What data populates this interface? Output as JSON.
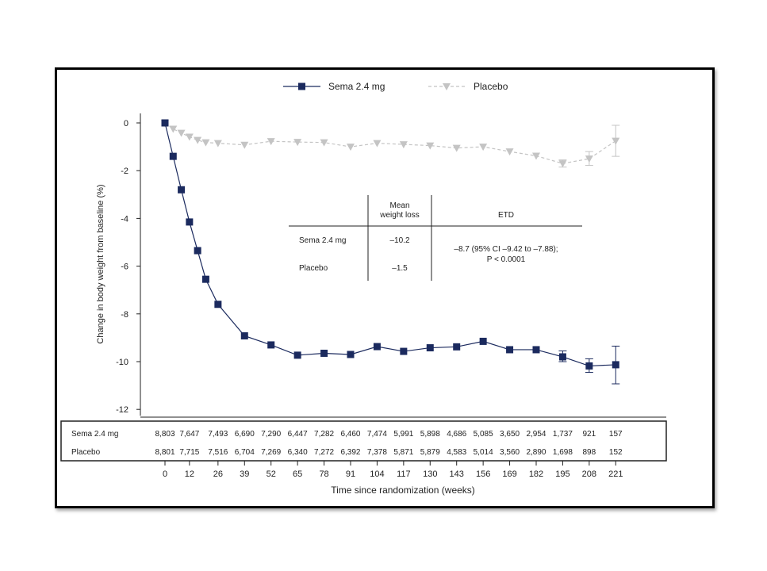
{
  "chart_data": {
    "type": "line",
    "xlabel": "Time since randomization (weeks)",
    "ylabel": "Change in body weight from baseline (%)",
    "ylim": [
      -12,
      0
    ],
    "xticks": [
      0,
      12,
      26,
      39,
      52,
      65,
      78,
      91,
      104,
      117,
      130,
      143,
      156,
      169,
      182,
      195,
      208,
      221
    ],
    "yticks": [
      0,
      -2,
      -4,
      -6,
      -8,
      -10,
      -12
    ],
    "ytick_labels": [
      "0",
      "-2",
      "-4",
      "-6",
      "-8",
      "-10",
      "-12"
    ],
    "legend_position": "top",
    "series": [
      {
        "name": "Sema 2.4 mg",
        "color": "#1b2a5e",
        "marker": "square",
        "line_style": "solid",
        "x": [
          0,
          4,
          8,
          12,
          16,
          20,
          26,
          39,
          52,
          65,
          78,
          91,
          104,
          117,
          130,
          143,
          156,
          169,
          182,
          195,
          208,
          221
        ],
        "y": [
          0,
          -1.4,
          -2.8,
          -4.15,
          -5.35,
          -6.55,
          -7.6,
          -8.92,
          -9.3,
          -9.73,
          -9.65,
          -9.7,
          -9.37,
          -9.57,
          -9.42,
          -9.38,
          -9.15,
          -9.5,
          -9.5,
          -9.8,
          -10.18,
          -10.13
        ],
        "error": [
          {
            "x": 195,
            "low": -10.0,
            "high": -9.55
          },
          {
            "x": 208,
            "low": -10.45,
            "high": -9.88
          },
          {
            "x": 221,
            "low": -10.93,
            "high": -9.35
          }
        ]
      },
      {
        "name": "Placebo",
        "color": "#c4c4c4",
        "marker": "triangle-down",
        "line_style": "dashed",
        "x": [
          0,
          4,
          8,
          12,
          16,
          20,
          26,
          39,
          52,
          65,
          78,
          91,
          104,
          117,
          130,
          143,
          156,
          169,
          182,
          195,
          208,
          221
        ],
        "y": [
          0,
          -0.25,
          -0.42,
          -0.58,
          -0.72,
          -0.82,
          -0.85,
          -0.92,
          -0.77,
          -0.8,
          -0.82,
          -1.0,
          -0.85,
          -0.9,
          -0.95,
          -1.05,
          -1.0,
          -1.2,
          -1.38,
          -1.7,
          -1.5,
          -0.75
        ],
        "error": [
          {
            "x": 195,
            "low": -1.85,
            "high": -1.55
          },
          {
            "x": 208,
            "low": -1.78,
            "high": -1.2
          },
          {
            "x": 221,
            "low": -1.4,
            "high": -0.1
          }
        ]
      }
    ],
    "at_risk": {
      "rows": [
        {
          "label": "Sema 2.4 mg",
          "values": [
            "8,803",
            "7,647",
            "7,493",
            "6,690",
            "7,290",
            "6,447",
            "7,282",
            "6,460",
            "7,474",
            "5,991",
            "5,898",
            "4,686",
            "5,085",
            "3,650",
            "2,954",
            "1,737",
            "921",
            "157"
          ]
        },
        {
          "label": "Placebo",
          "values": [
            "8,801",
            "7,715",
            "7,516",
            "6,704",
            "7,269",
            "6,340",
            "7,272",
            "6,392",
            "7,378",
            "5,871",
            "5,879",
            "4,583",
            "5,014",
            "3,560",
            "2,890",
            "1,698",
            "898",
            "152"
          ]
        }
      ]
    },
    "inset_table": {
      "headers": [
        "",
        "Mean weight loss",
        "ETD"
      ],
      "rows": [
        {
          "label": "Sema 2.4 mg",
          "value": "–10.2"
        },
        {
          "label": "Placebo",
          "value": "–1.5"
        }
      ],
      "etd_line1": "–8.7 (95% CI –9.42 to –7.88);",
      "etd_line2": "P < 0.0001"
    }
  }
}
